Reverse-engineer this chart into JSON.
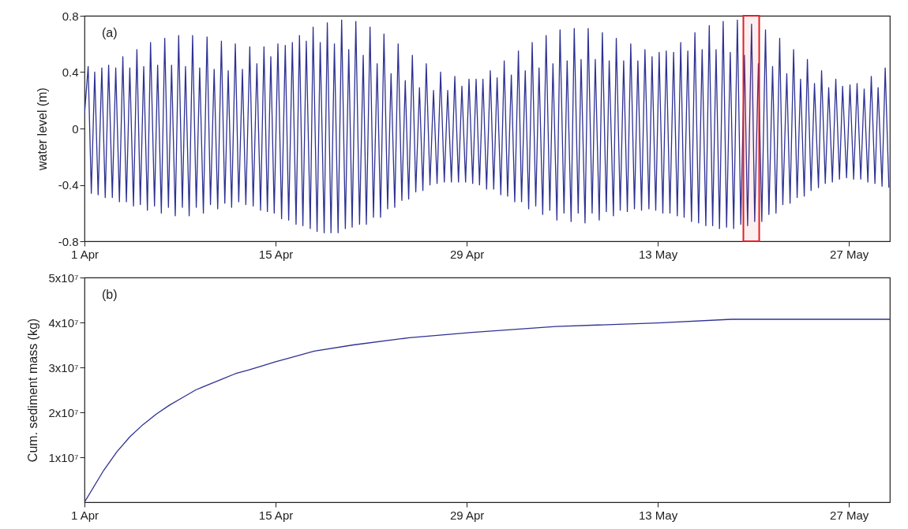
{
  "chart_data": [
    {
      "type": "line",
      "ylabel": "water level (m)",
      "annotations": [
        "(a)"
      ],
      "x": [
        "--04-01T00:00",
        "--04-01T06:29",
        "--04-01T12:00",
        "--04-01T18:00",
        "--04-02T00:00",
        "--04-02T06:29",
        "--04-02T12:29",
        "--04-02T18:29",
        "--04-03T00:58",
        "--04-03T06:58",
        "--04-03T13:26",
        "--04-03T19:26",
        "--04-04T01:41",
        "--04-04T07:41",
        "--04-04T14:10",
        "--04-04T20:10",
        "--04-05T02:10",
        "--04-05T08:10",
        "--04-05T14:38",
        "--04-05T20:10",
        "--04-06T03:07",
        "--04-06T08:38",
        "--04-06T15:07",
        "--04-06T21:07",
        "--04-07T03:36",
        "--04-07T09:07",
        "--04-07T15:36",
        "--04-07T21:36",
        "--04-08T04:05",
        "--04-08T09:36",
        "--04-08T16:05",
        "--04-08T22:05",
        "--04-09T04:34",
        "--04-09T10:34",
        "--04-09T17:02",
        "--04-09T23:31",
        "--04-10T05:31",
        "--04-10T12:00",
        "--04-10T18:14",
        "--04-11T00:43",
        "--04-11T06:43",
        "--04-11T12:43",
        "--04-11T18:43",
        "--04-12T01:12",
        "--04-12T07:12",
        "--04-12T13:41",
        "--04-12T19:41",
        "--04-13T02:38",
        "--04-13T08:38",
        "--04-13T15:07",
        "--04-13T21:36",
        "--04-14T03:36",
        "--04-14T09:36",
        "--04-14T15:36",
        "--04-14T21:36",
        "--04-15T04:05",
        "--04-15T10:34",
        "--04-15T17:02",
        "--04-15T23:02",
        "--04-16T05:31",
        "--04-16T12:00",
        "--04-16T18:00",
        "--04-17T00:00",
        "--04-17T06:00",
        "--04-17T12:58",
        "--04-17T18:00",
        "--04-18T00:58",
        "--04-18T06:29",
        "--04-18T13:26",
        "--04-18T18:58",
        "--04-19T01:26",
        "--04-19T07:26",
        "--04-19T13:55",
        "--04-19T20:10",
        "--04-20T02:38",
        "--04-20T08:38",
        "--04-20T14:38",
        "--04-20T21:07",
        "--04-21T03:36",
        "--04-21T10:05",
        "--04-21T15:36",
        "--04-21T22:05",
        "--04-22T04:05",
        "--04-22T10:34",
        "--04-22T16:34",
        "--04-22T22:34",
        "--04-23T05:02",
        "--04-23T11:02",
        "--04-23T17:31",
        "--04-23T23:31",
        "--04-24T06:00",
        "--04-24T12:00",
        "--04-24T18:00",
        "--04-25T00:29",
        "--04-25T06:29",
        "--04-25T12:58",
        "--04-25T18:58",
        "--04-26T00:58",
        "--04-26T07:26",
        "--04-26T13:41",
        "--04-26T19:55",
        "--04-27T02:10",
        "--04-27T08:38",
        "--04-27T14:38",
        "--04-27T21:07",
        "--04-28T03:07",
        "--04-28T09:36",
        "--04-28T15:36",
        "--04-28T22:05",
        "--04-29T04:05",
        "--04-29T10:34",
        "--04-29T16:34",
        "--04-29T22:34",
        "--04-30T04:34",
        "--04-30T11:02",
        "--04-30T17:31",
        "--04-30T23:31",
        "--05-01T05:31",
        "--05-01T12:00",
        "--05-01T18:00",
        "--05-02T00:00",
        "--05-02T06:29",
        "--05-02T12:29",
        "--05-02T18:58",
        "--05-03T00:29",
        "--05-03T06:58",
        "--05-03T12:58",
        "--05-03T19:12",
        "--05-04T01:26",
        "--05-04T07:12",
        "--05-04T13:41",
        "--05-04T19:41",
        "--05-05T02:10",
        "--05-05T07:41",
        "--05-05T14:38",
        "--05-05T20:10",
        "--05-06T03:07",
        "--05-06T08:38",
        "--05-06T15:36",
        "--05-06T21:07",
        "--05-07T04:05",
        "--05-07T09:07",
        "--05-07T16:05",
        "--05-07T21:36",
        "--05-08T04:34",
        "--05-08T10:05",
        "--05-08T17:02",
        "--05-08T22:34",
        "--05-09T05:31",
        "--05-09T10:34",
        "--05-09T18:00",
        "--05-09T23:02",
        "--05-10T06:00",
        "--05-10T12:00",
        "--05-10T18:29",
        "--05-11T00:29",
        "--05-11T06:58",
        "--05-11T12:58",
        "--05-11T19:26",
        "--05-12T01:26",
        "--05-12T08:24",
        "--05-12T13:55",
        "--05-12T20:24",
        "--05-13T02:24",
        "--05-13T08:53",
        "--05-13T14:53",
        "--05-13T21:22",
        "--05-14T03:50",
        "--05-14T10:19",
        "--05-14T16:19",
        "--05-14T22:19",
        "--05-15T04:48",
        "--05-15T11:17",
        "--05-15T17:17",
        "--05-15T23:46",
        "--05-16T06:00",
        "--05-16T12:29",
        "--05-16T18:29",
        "--05-17T00:29",
        "--05-17T06:29",
        "--05-17T12:29",
        "--05-17T18:58",
        "--05-18T00:58",
        "--05-18T07:26",
        "--05-18T13:26",
        "--05-18T19:55",
        "--05-19T01:55",
        "--05-19T08:24",
        "--05-19T13:55",
        "--05-19T20:53",
        "--05-20T02:24",
        "--05-20T08:53",
        "--05-20T14:53",
        "--05-20T21:22",
        "--05-21T03:22",
        "--05-21T09:50",
        "--05-21T15:50",
        "--05-21T22:19",
        "--05-22T03:50",
        "--05-22T10:48",
        "--05-22T16:34",
        "--05-22T22:48",
        "--05-23T05:02",
        "--05-23T11:02",
        "--05-23T17:31",
        "--05-23T23:02",
        "--05-24T05:31",
        "--05-24T11:31",
        "--05-24T18:29",
        "--05-25T00:00",
        "--05-25T06:29",
        "--05-25T12:29",
        "--05-25T18:58",
        "--05-26T00:58",
        "--05-26T07:26",
        "--05-26T12:58",
        "--05-26T19:55",
        "--05-27T01:55",
        "--05-27T08:24",
        "--05-27T14:24",
        "--05-27T20:53",
        "--05-28T02:53",
        "--05-28T09:22",
        "--05-28T15:22",
        "--05-28T21:50",
        "--05-29T03:22",
        "--05-29T10:19",
        "--05-29T15:50",
        "--05-29T22:19"
      ],
      "series": [
        {
          "color": "#2e3192",
          "values": [
            0.1,
            0.44,
            -0.46,
            0.4,
            -0.47,
            0.43,
            -0.49,
            0.45,
            -0.49,
            0.43,
            -0.52,
            0.51,
            -0.52,
            0.43,
            -0.55,
            0.56,
            -0.54,
            0.44,
            -0.58,
            0.61,
            -0.55,
            0.45,
            -0.6,
            0.64,
            -0.56,
            0.45,
            -0.62,
            0.66,
            -0.56,
            0.44,
            -0.62,
            0.66,
            -0.56,
            0.43,
            -0.6,
            0.65,
            -0.54,
            0.42,
            -0.57,
            0.62,
            -0.53,
            0.41,
            -0.56,
            0.6,
            -0.52,
            0.42,
            -0.54,
            0.58,
            -0.55,
            0.46,
            -0.58,
            0.58,
            -0.59,
            0.51,
            -0.6,
            0.6,
            -0.64,
            0.59,
            -0.65,
            0.61,
            -0.68,
            0.66,
            -0.69,
            0.62,
            -0.71,
            0.72,
            -0.73,
            0.61,
            -0.74,
            0.75,
            -0.74,
            0.6,
            -0.74,
            0.77,
            -0.71,
            0.56,
            -0.7,
            0.76,
            -0.68,
            0.52,
            -0.68,
            0.72,
            -0.63,
            0.46,
            -0.63,
            0.67,
            -0.57,
            0.39,
            -0.56,
            0.6,
            -0.51,
            0.34,
            -0.5,
            0.52,
            -0.45,
            0.29,
            -0.44,
            0.46,
            -0.4,
            0.27,
            -0.39,
            0.4,
            -0.38,
            0.27,
            -0.38,
            0.37,
            -0.38,
            0.3,
            -0.38,
            0.35,
            -0.39,
            0.35,
            -0.4,
            0.35,
            -0.43,
            0.41,
            -0.43,
            0.36,
            -0.47,
            0.48,
            -0.48,
            0.38,
            -0.52,
            0.55,
            -0.52,
            0.41,
            -0.57,
            0.61,
            -0.55,
            0.43,
            -0.61,
            0.66,
            -0.58,
            0.46,
            -0.65,
            0.7,
            -0.6,
            0.48,
            -0.66,
            0.71,
            -0.6,
            0.49,
            -0.67,
            0.71,
            -0.6,
            0.49,
            -0.65,
            0.68,
            -0.59,
            0.48,
            -0.62,
            0.64,
            -0.58,
            0.48,
            -0.59,
            0.6,
            -0.57,
            0.48,
            -0.58,
            0.56,
            -0.57,
            0.51,
            -0.58,
            0.54,
            -0.6,
            0.55,
            -0.6,
            0.54,
            -0.62,
            0.61,
            -0.63,
            0.55,
            -0.66,
            0.68,
            -0.67,
            0.56,
            -0.69,
            0.73,
            -0.69,
            0.56,
            -0.71,
            0.76,
            -0.7,
            0.54,
            -0.71,
            0.77,
            -0.68,
            0.52,
            -0.69,
            0.74,
            -0.66,
            0.46,
            -0.66,
            0.7,
            -0.61,
            0.44,
            -0.6,
            0.64,
            -0.54,
            0.39,
            -0.53,
            0.56,
            -0.49,
            0.35,
            -0.48,
            0.49,
            -0.44,
            0.32,
            -0.42,
            0.41,
            -0.39,
            0.29,
            -0.38,
            0.35,
            -0.36,
            0.3,
            -0.35,
            0.31,
            -0.36,
            0.32,
            -0.36,
            0.28,
            -0.38,
            0.37,
            -0.39,
            0.29,
            -0.41,
            0.43,
            -0.42
          ]
        }
      ],
      "xlim": [
        "--04-01T00:00",
        "--05-30T00:00"
      ],
      "xticks": [
        {
          "value": "--04-01",
          "label": "1 Apr"
        },
        {
          "value": "--04-15",
          "label": "15 Apr"
        },
        {
          "value": "--04-29",
          "label": "29 Apr"
        },
        {
          "value": "--05-13",
          "label": "13 May"
        },
        {
          "value": "--05-27",
          "label": "27 May"
        }
      ],
      "ylim": [
        -0.8,
        0.8
      ],
      "yticks": [
        -0.8,
        -0.4,
        0,
        0.4,
        0.8
      ],
      "bands": [
        {
          "axis": "x",
          "from": "--05-19T06:29",
          "to": "--05-20T10:19",
          "color": "#e31e24"
        }
      ],
      "line_style": "solid"
    },
    {
      "type": "line",
      "ylabel": "Cum. sediment mass (kg)",
      "annotations": [
        "(b)"
      ],
      "x": [
        "--04-01T00:00",
        "--04-02T09:50",
        "--04-03T08:53",
        "--04-04T08:10",
        "--04-05T07:12",
        "--04-06T06:14",
        "--04-07T05:31",
        "--04-08T04:34",
        "--04-09T03:50",
        "--04-10T02:53",
        "--04-11T01:55",
        "--04-12T01:12",
        "--04-13T00:14",
        "--04-13T23:17",
        "--04-14T22:34",
        "--04-15T21:36",
        "--04-17T19:55",
        "--04-20T16:48",
        "--04-24T19:12",
        "--04-29T09:36",
        "--05-05T12:43",
        "--05-12T23:46",
        "--05-18T09:36",
        "--05-30T00:00"
      ],
      "series": [
        {
          "color": "#2e3192",
          "values": [
            0,
            7100000.0,
            11200000.0,
            14600000.0,
            17300000.0,
            19600000.0,
            21600000.0,
            23300000.0,
            25000000.0,
            26200000.0,
            27400000.0,
            28600000.0,
            29400000.0,
            30300000.0,
            31200000.0,
            32000000.0,
            33600000.0,
            35000000.0,
            36600000.0,
            37800000.0,
            39100000.0,
            39900000.0,
            40700000.0,
            40700000.0
          ]
        }
      ],
      "xlim": [
        "--04-01T00:00",
        "--05-30T00:00"
      ],
      "xticks": [
        {
          "value": "--04-01",
          "label": "1 Apr"
        },
        {
          "value": "--04-15",
          "label": "15 Apr"
        },
        {
          "value": "--04-29",
          "label": "29 Apr"
        },
        {
          "value": "--05-13",
          "label": "13 May"
        },
        {
          "value": "--05-27",
          "label": "27 May"
        }
      ],
      "ylim": [
        0,
        50000000.0
      ],
      "yticks": [
        {
          "value": 10000000.0,
          "label": "1x10⁷"
        },
        {
          "value": 20000000.0,
          "label": "2x10⁷"
        },
        {
          "value": 30000000.0,
          "label": "3x10⁷"
        },
        {
          "value": 40000000.0,
          "label": "4x10⁷"
        },
        {
          "value": 50000000.0,
          "label": "5x10⁷"
        }
      ],
      "line_style": "solid"
    }
  ]
}
